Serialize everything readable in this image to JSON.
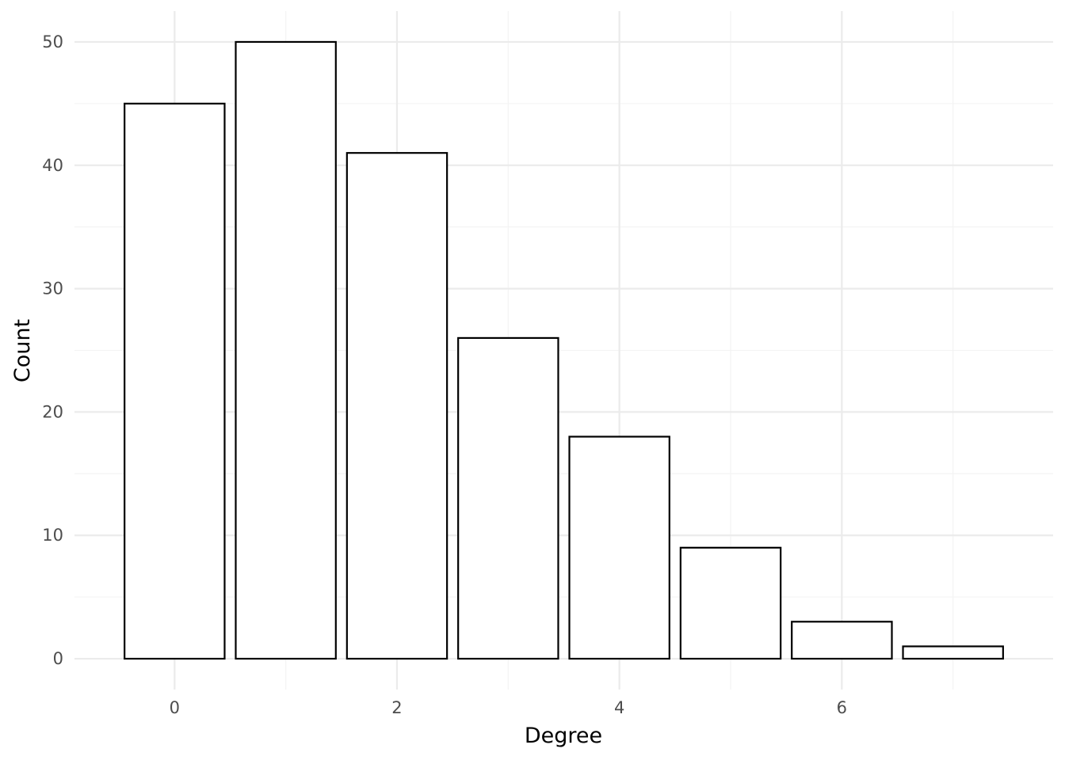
{
  "chart_data": {
    "type": "bar",
    "x": [
      0,
      1,
      2,
      3,
      4,
      5,
      6,
      7
    ],
    "values": [
      45,
      50,
      41,
      26,
      18,
      9,
      3,
      1
    ],
    "xlabel": "Degree",
    "ylabel": "Count",
    "xticks": [
      "0",
      "2",
      "4",
      "6"
    ],
    "yticks": [
      "0",
      "10",
      "20",
      "30",
      "40",
      "50"
    ],
    "xlim": [
      -0.9,
      7.9
    ],
    "ylim": [
      -2.5,
      52.5
    ],
    "bar_fill": "#ffffff",
    "bar_outline": "#000000",
    "grid": true,
    "legend": "none"
  }
}
